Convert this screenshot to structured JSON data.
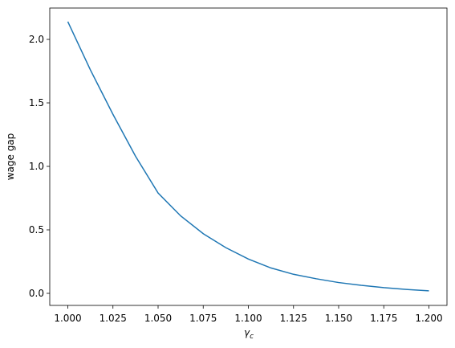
{
  "chart_data": {
    "type": "line",
    "x_label": {
      "symbol": "γ",
      "subscript": "c"
    },
    "y_label": "wage gap",
    "x": [
      1.0,
      1.0125,
      1.025,
      1.0375,
      1.05,
      1.0625,
      1.075,
      1.0875,
      1.1,
      1.1125,
      1.125,
      1.1375,
      1.15,
      1.1625,
      1.175,
      1.1875,
      1.2
    ],
    "values": [
      2.14,
      1.76,
      1.41,
      1.08,
      0.79,
      0.61,
      0.47,
      0.36,
      0.27,
      0.2,
      0.15,
      0.115,
      0.085,
      0.063,
      0.045,
      0.031,
      0.02
    ],
    "color": "#1f77b4",
    "xlim": [
      0.99,
      1.21
    ],
    "ylim": [
      -0.095,
      2.247
    ],
    "xticks": [
      {
        "value": 1.0,
        "label": "1.000"
      },
      1.025,
      {
        "value": 1.05,
        "label": "1.050"
      },
      1.075,
      {
        "value": 1.1,
        "label": "1.100"
      },
      1.125,
      {
        "value": 1.15,
        "label": "1.150"
      },
      1.175,
      {
        "value": 1.2,
        "label": "1.200"
      }
    ],
    "yticks": [
      {
        "value": 0,
        "label": "0.0"
      },
      0.5,
      {
        "value": 1,
        "label": "1.0"
      },
      1.5,
      {
        "value": 2,
        "label": "2.0"
      }
    ]
  }
}
